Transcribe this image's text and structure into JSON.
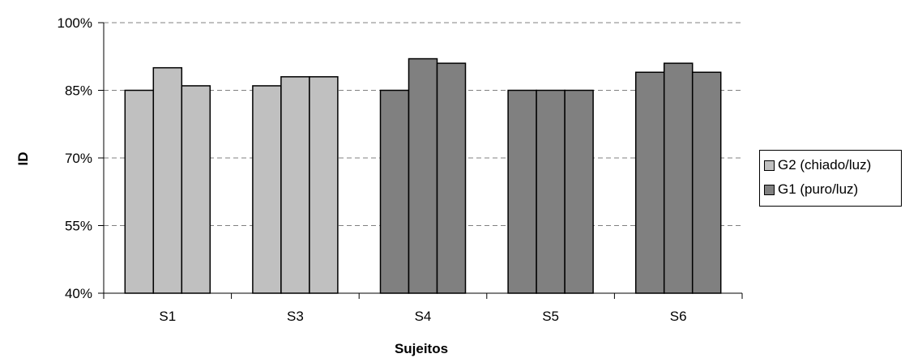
{
  "chart_data": {
    "type": "bar",
    "title": "",
    "xlabel": "Sujeitos",
    "ylabel": "ID",
    "ylim": [
      40,
      100
    ],
    "yticks": [
      "40%",
      "55%",
      "70%",
      "85%",
      "100%"
    ],
    "ytick_values": [
      40,
      55,
      70,
      85,
      100
    ],
    "grid": "horizontal dashed",
    "legend_position": "right",
    "categories": [
      "S1",
      "S3",
      "S4",
      "S5",
      "S6"
    ],
    "groups": [
      {
        "subject": "S1",
        "group": "G2 (chiado/luz)",
        "values": [
          85,
          90,
          86
        ]
      },
      {
        "subject": "S3",
        "group": "G2 (chiado/luz)",
        "values": [
          86,
          88,
          88
        ]
      },
      {
        "subject": "S4",
        "group": "G1 (puro/luz)",
        "values": [
          85,
          92,
          91
        ]
      },
      {
        "subject": "S5",
        "group": "G1 (puro/luz)",
        "values": [
          85,
          85,
          85
        ]
      },
      {
        "subject": "S6",
        "group": "G1 (puro/luz)",
        "values": [
          89,
          91,
          89
        ]
      }
    ],
    "series": [
      {
        "name": "G2 (chiado/luz)",
        "color": "#c0c0c0"
      },
      {
        "name": "G1 (puro/luz)",
        "color": "#808080"
      }
    ]
  },
  "legend": {
    "items": [
      {
        "label": "G2 (chiado/luz)",
        "color": "#c0c0c0"
      },
      {
        "label": "G1 (puro/luz)",
        "color": "#808080"
      }
    ]
  }
}
